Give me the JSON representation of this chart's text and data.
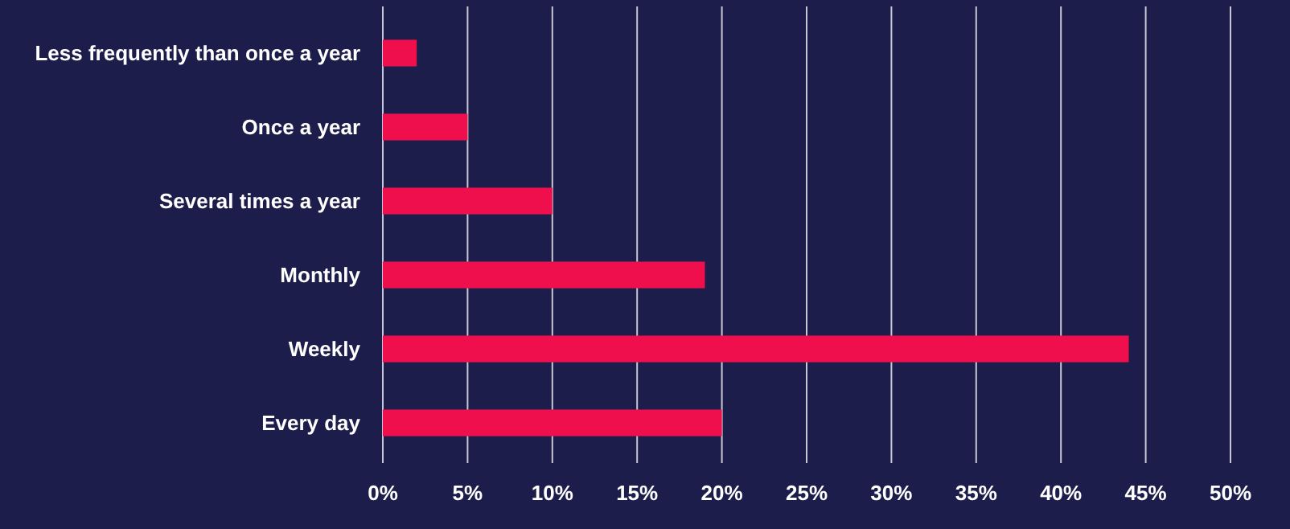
{
  "chart_data": {
    "type": "bar",
    "orientation": "horizontal",
    "categories": [
      "Less frequently than once a year",
      "Once a year",
      "Several times a year",
      "Monthly",
      "Weekly",
      "Every day"
    ],
    "values": [
      2,
      5,
      10,
      19,
      44,
      20
    ],
    "color": "#ee0f4c",
    "xlim": [
      0,
      50
    ],
    "xticks": [
      {
        "value": 0,
        "label": "0%"
      },
      {
        "value": 5,
        "label": "5%"
      },
      {
        "value": 10,
        "label": "10%"
      },
      {
        "value": 15,
        "label": "15%"
      },
      {
        "value": 20,
        "label": "20%"
      },
      {
        "value": 25,
        "label": "25%"
      },
      {
        "value": 30,
        "label": "30%"
      },
      {
        "value": 35,
        "label": "35%"
      },
      {
        "value": 40,
        "label": "40%"
      },
      {
        "value": 45,
        "label": "45%"
      },
      {
        "value": 50,
        "label": "50%"
      }
    ],
    "grid": "x"
  }
}
